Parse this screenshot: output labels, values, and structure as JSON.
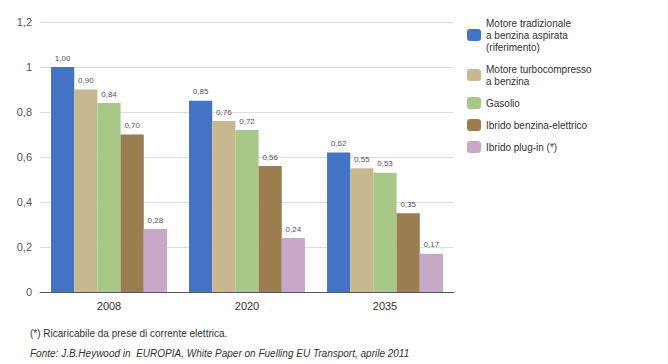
{
  "chart_data": {
    "type": "bar",
    "categories": [
      "2008",
      "2020",
      "2035"
    ],
    "series": [
      {
        "name": "Motore tradizionale\na benzina aspirata\n(riferimento)",
        "color": "#4472C4",
        "values": [
          1.0,
          0.85,
          0.62
        ],
        "value_labels": [
          "1,00",
          "0,85",
          "0,62"
        ]
      },
      {
        "name": "Motore turbocompresso\na benzina",
        "color": "#C8B890",
        "values": [
          0.9,
          0.76,
          0.55
        ],
        "value_labels": [
          "0,90",
          "0,76",
          "0,55"
        ]
      },
      {
        "name": "Gasolio",
        "color": "#A8C888",
        "values": [
          0.84,
          0.72,
          0.53
        ],
        "value_labels": [
          "0,84",
          "0,72",
          "0,53"
        ]
      },
      {
        "name": "Ibrido benzina-elettrico",
        "color": "#9B7D50",
        "values": [
          0.7,
          0.56,
          0.35
        ],
        "value_labels": [
          "0,70",
          "0,56",
          "0,35"
        ]
      },
      {
        "name": "Ibrido plug-in (*)",
        "color": "#C8A8C8",
        "values": [
          0.28,
          0.24,
          0.17
        ],
        "value_labels": [
          "0,28",
          "0,24",
          "0,17"
        ]
      }
    ],
    "ylim": [
      0,
      1.2
    ],
    "yticks": [
      0,
      {
        "value": 0.2,
        "label": "0,2"
      },
      {
        "value": 0.4,
        "label": "0,4"
      },
      {
        "value": 0.6,
        "label": "0,6"
      },
      {
        "value": 0.8,
        "label": "0,8"
      },
      1,
      {
        "value": 1.2,
        "label": "1,2"
      }
    ],
    "grid": true,
    "legend": "right",
    "data_labels": true,
    "annotations": [
      "(*) Ricaricabile da prese di corrente elettrica.",
      "Fonte: J.B.Heywood in  EUROPIA, White Paper on Fuelling EU Transport, aprile 2011"
    ]
  }
}
